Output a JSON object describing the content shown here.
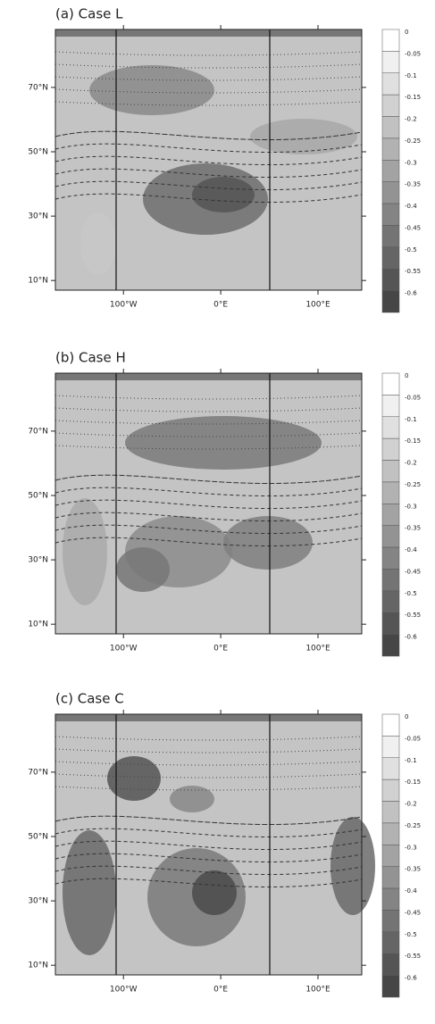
{
  "chart_data": [
    {
      "type": "contour",
      "title": "(a) Case L",
      "xlim": [
        -170,
        145
      ],
      "ylim": [
        7,
        88
      ],
      "xticks": [
        {
          "value": -100,
          "label": "100°W"
        },
        {
          "value": 0,
          "label": "0°E"
        },
        {
          "value": 100,
          "label": "100°E"
        }
      ],
      "yticks": [
        {
          "value": 10,
          "label": "10°N"
        },
        {
          "value": 30,
          "label": "30°N"
        },
        {
          "value": 50,
          "label": "50°N"
        },
        {
          "value": 70,
          "label": "70°N"
        }
      ],
      "colorbar": [
        0,
        -0.05,
        -0.1,
        -0.15,
        -0.2,
        -0.25,
        -0.3,
        -0.35,
        -0.4,
        -0.45,
        -0.5,
        -0.55,
        -0.6
      ]
    },
    {
      "type": "contour",
      "title": "(b) Case H",
      "xlim": [
        -170,
        145
      ],
      "ylim": [
        7,
        88
      ],
      "xticks": [
        {
          "value": -100,
          "label": "100°W"
        },
        {
          "value": 0,
          "label": "0°E"
        },
        {
          "value": 100,
          "label": "100°E"
        }
      ],
      "yticks": [
        {
          "value": 10,
          "label": "10°N"
        },
        {
          "value": 30,
          "label": "30°N"
        },
        {
          "value": 50,
          "label": "50°N"
        },
        {
          "value": 70,
          "label": "70°N"
        }
      ],
      "colorbar": [
        0,
        -0.05,
        -0.1,
        -0.15,
        -0.2,
        -0.25,
        -0.3,
        -0.35,
        -0.4,
        -0.45,
        -0.5,
        -0.55,
        -0.6
      ]
    },
    {
      "type": "contour",
      "title": "(c) Case C",
      "xlim": [
        -170,
        145
      ],
      "ylim": [
        7,
        88
      ],
      "xticks": [
        {
          "value": -100,
          "label": "100°W"
        },
        {
          "value": 0,
          "label": "0°E"
        },
        {
          "value": 100,
          "label": "100°E"
        }
      ],
      "yticks": [
        {
          "value": 10,
          "label": "10°N"
        },
        {
          "value": 30,
          "label": "30°N"
        },
        {
          "value": 50,
          "label": "50°N"
        },
        {
          "value": 70,
          "label": "70°N"
        }
      ],
      "colorbar": [
        0,
        -0.05,
        -0.1,
        -0.15,
        -0.2,
        -0.25,
        -0.3,
        -0.35,
        -0.4,
        -0.45,
        -0.5,
        -0.55,
        -0.6
      ]
    }
  ]
}
